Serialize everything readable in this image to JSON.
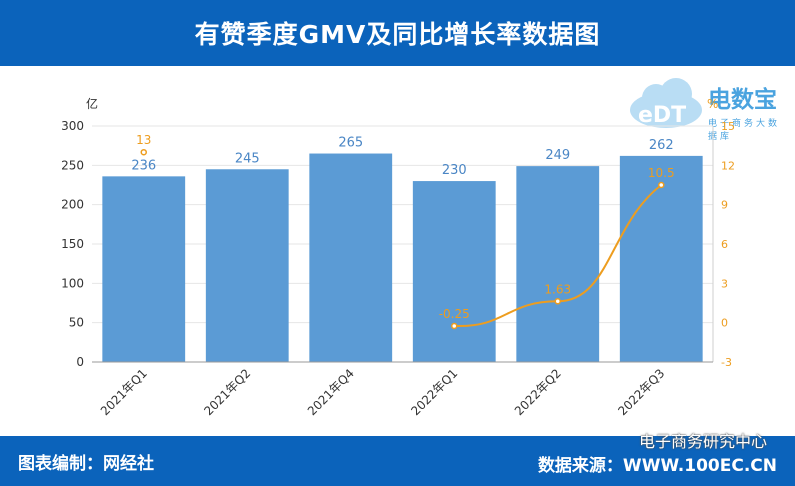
{
  "header": {
    "title": "有赞季度GMV及同比增长率数据图"
  },
  "footer": {
    "left": "图表编制：网经社",
    "right": "数据来源：WWW.100EC.CN",
    "watermark": "电子商务研究中心"
  },
  "logo": {
    "brand": "电数宝",
    "sub": "电子商务大数据库",
    "mark": "eDT"
  },
  "colors": {
    "bar": "#5b9bd5",
    "line": "#ed9d1f",
    "header": "#0b63bb"
  },
  "chart_data": {
    "type": "bar",
    "categories": [
      "2021年Q1",
      "2021年Q2",
      "2021年Q4",
      "2022年Q1",
      "2022年Q2",
      "2022年Q3"
    ],
    "series": [
      {
        "type": "bar",
        "axis": "left",
        "values": [
          236,
          245,
          265,
          230,
          249,
          262
        ],
        "labels": [
          "236",
          "245",
          "265",
          "230",
          "249",
          "262"
        ]
      },
      {
        "type": "line",
        "axis": "right",
        "values": [
          13,
          null,
          null,
          -0.25,
          1.63,
          10.5
        ],
        "labels": [
          "13",
          "",
          "",
          "-0.25",
          "1.63",
          "10.5"
        ]
      }
    ],
    "ylabel": "亿",
    "y2label": "%",
    "ylim": [
      0,
      300
    ],
    "yticks": [
      0,
      50,
      100,
      150,
      200,
      250,
      300
    ],
    "y2lim": [
      -3,
      15
    ],
    "y2ticks": [
      -3,
      0,
      3,
      6,
      9,
      12,
      15
    ],
    "grid": true
  }
}
